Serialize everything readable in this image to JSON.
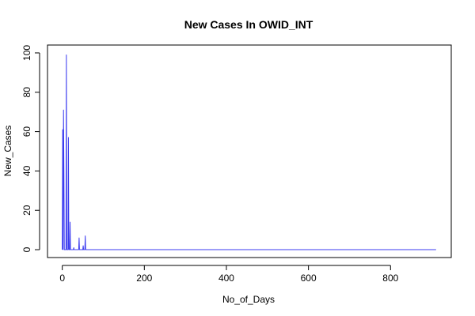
{
  "chart_data": {
    "type": "line",
    "title": "New Cases In OWID_INT",
    "xlabel": "No_of_Days",
    "ylabel": "New_Cases",
    "xlim": [
      -36,
      948
    ],
    "ylim": [
      -4,
      104
    ],
    "xticks": [
      0,
      200,
      400,
      600,
      800
    ],
    "yticks": [
      0,
      20,
      40,
      60,
      80,
      100
    ],
    "xtick_labels": [
      "0",
      "200",
      "400",
      "600",
      "800"
    ],
    "ytick_labels": [
      "0",
      "20",
      "40",
      "60",
      "80",
      "100"
    ],
    "line_color": "#3b3bf0",
    "series": [
      {
        "x": [
          0,
          1,
          2,
          3,
          4,
          5,
          6,
          7,
          8,
          9,
          10,
          11,
          12,
          13,
          14,
          15,
          16,
          17,
          18,
          19,
          20,
          21,
          22,
          23,
          24,
          25,
          26,
          27,
          28,
          29,
          30,
          31,
          40,
          41,
          42,
          43,
          44,
          50,
          51,
          52,
          53,
          54,
          55,
          56,
          57,
          58,
          59,
          60,
          911
        ],
        "y": [
          0,
          61,
          0,
          71,
          40,
          0,
          0,
          0,
          0,
          0,
          99,
          0,
          0,
          0,
          0,
          57,
          0,
          0,
          0,
          14,
          0,
          0,
          0,
          0,
          0,
          0,
          0,
          0,
          1,
          0,
          0,
          0,
          0,
          6,
          0,
          0,
          0,
          0,
          2,
          0,
          0,
          0,
          0,
          7,
          0,
          0,
          0,
          0,
          0
        ]
      }
    ],
    "grid": false,
    "legend": "none"
  }
}
